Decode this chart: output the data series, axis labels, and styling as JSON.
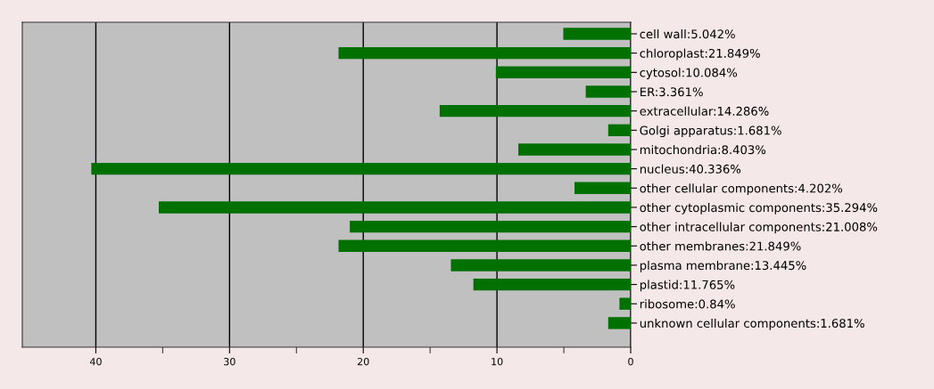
{
  "chart_data": {
    "type": "bar",
    "orientation": "horizontal",
    "categories": [
      "cell wall:5.042%",
      "chloroplast:21.849%",
      "cytosol:10.084%",
      "ER:3.361%",
      "extracellular:14.286%",
      "Golgi apparatus:1.681%",
      "mitochondria:8.403%",
      "nucleus:40.336%",
      "other cellular components:4.202%",
      "other cytoplasmic components:35.294%",
      "other intracellular components:21.008%",
      "other membranes:21.849%",
      "plasma membrane:13.445%",
      "plastid:11.765%",
      "ribosome:0.84%",
      "unknown cellular components:1.681%"
    ],
    "values": [
      5.042,
      21.849,
      10.084,
      3.361,
      14.286,
      1.681,
      8.403,
      40.336,
      4.202,
      35.294,
      21.008,
      21.849,
      13.445,
      11.765,
      0.84,
      1.681
    ],
    "color": "#007000",
    "xlim": [
      45.5,
      0
    ],
    "xticks": [
      40,
      {
        "value": 35,
        "label": null
      },
      30,
      {
        "value": 25,
        "label": null
      },
      20,
      {
        "value": 15,
        "label": null
      },
      10,
      {
        "value": 5,
        "label": null
      },
      0
    ],
    "grid": "x"
  }
}
